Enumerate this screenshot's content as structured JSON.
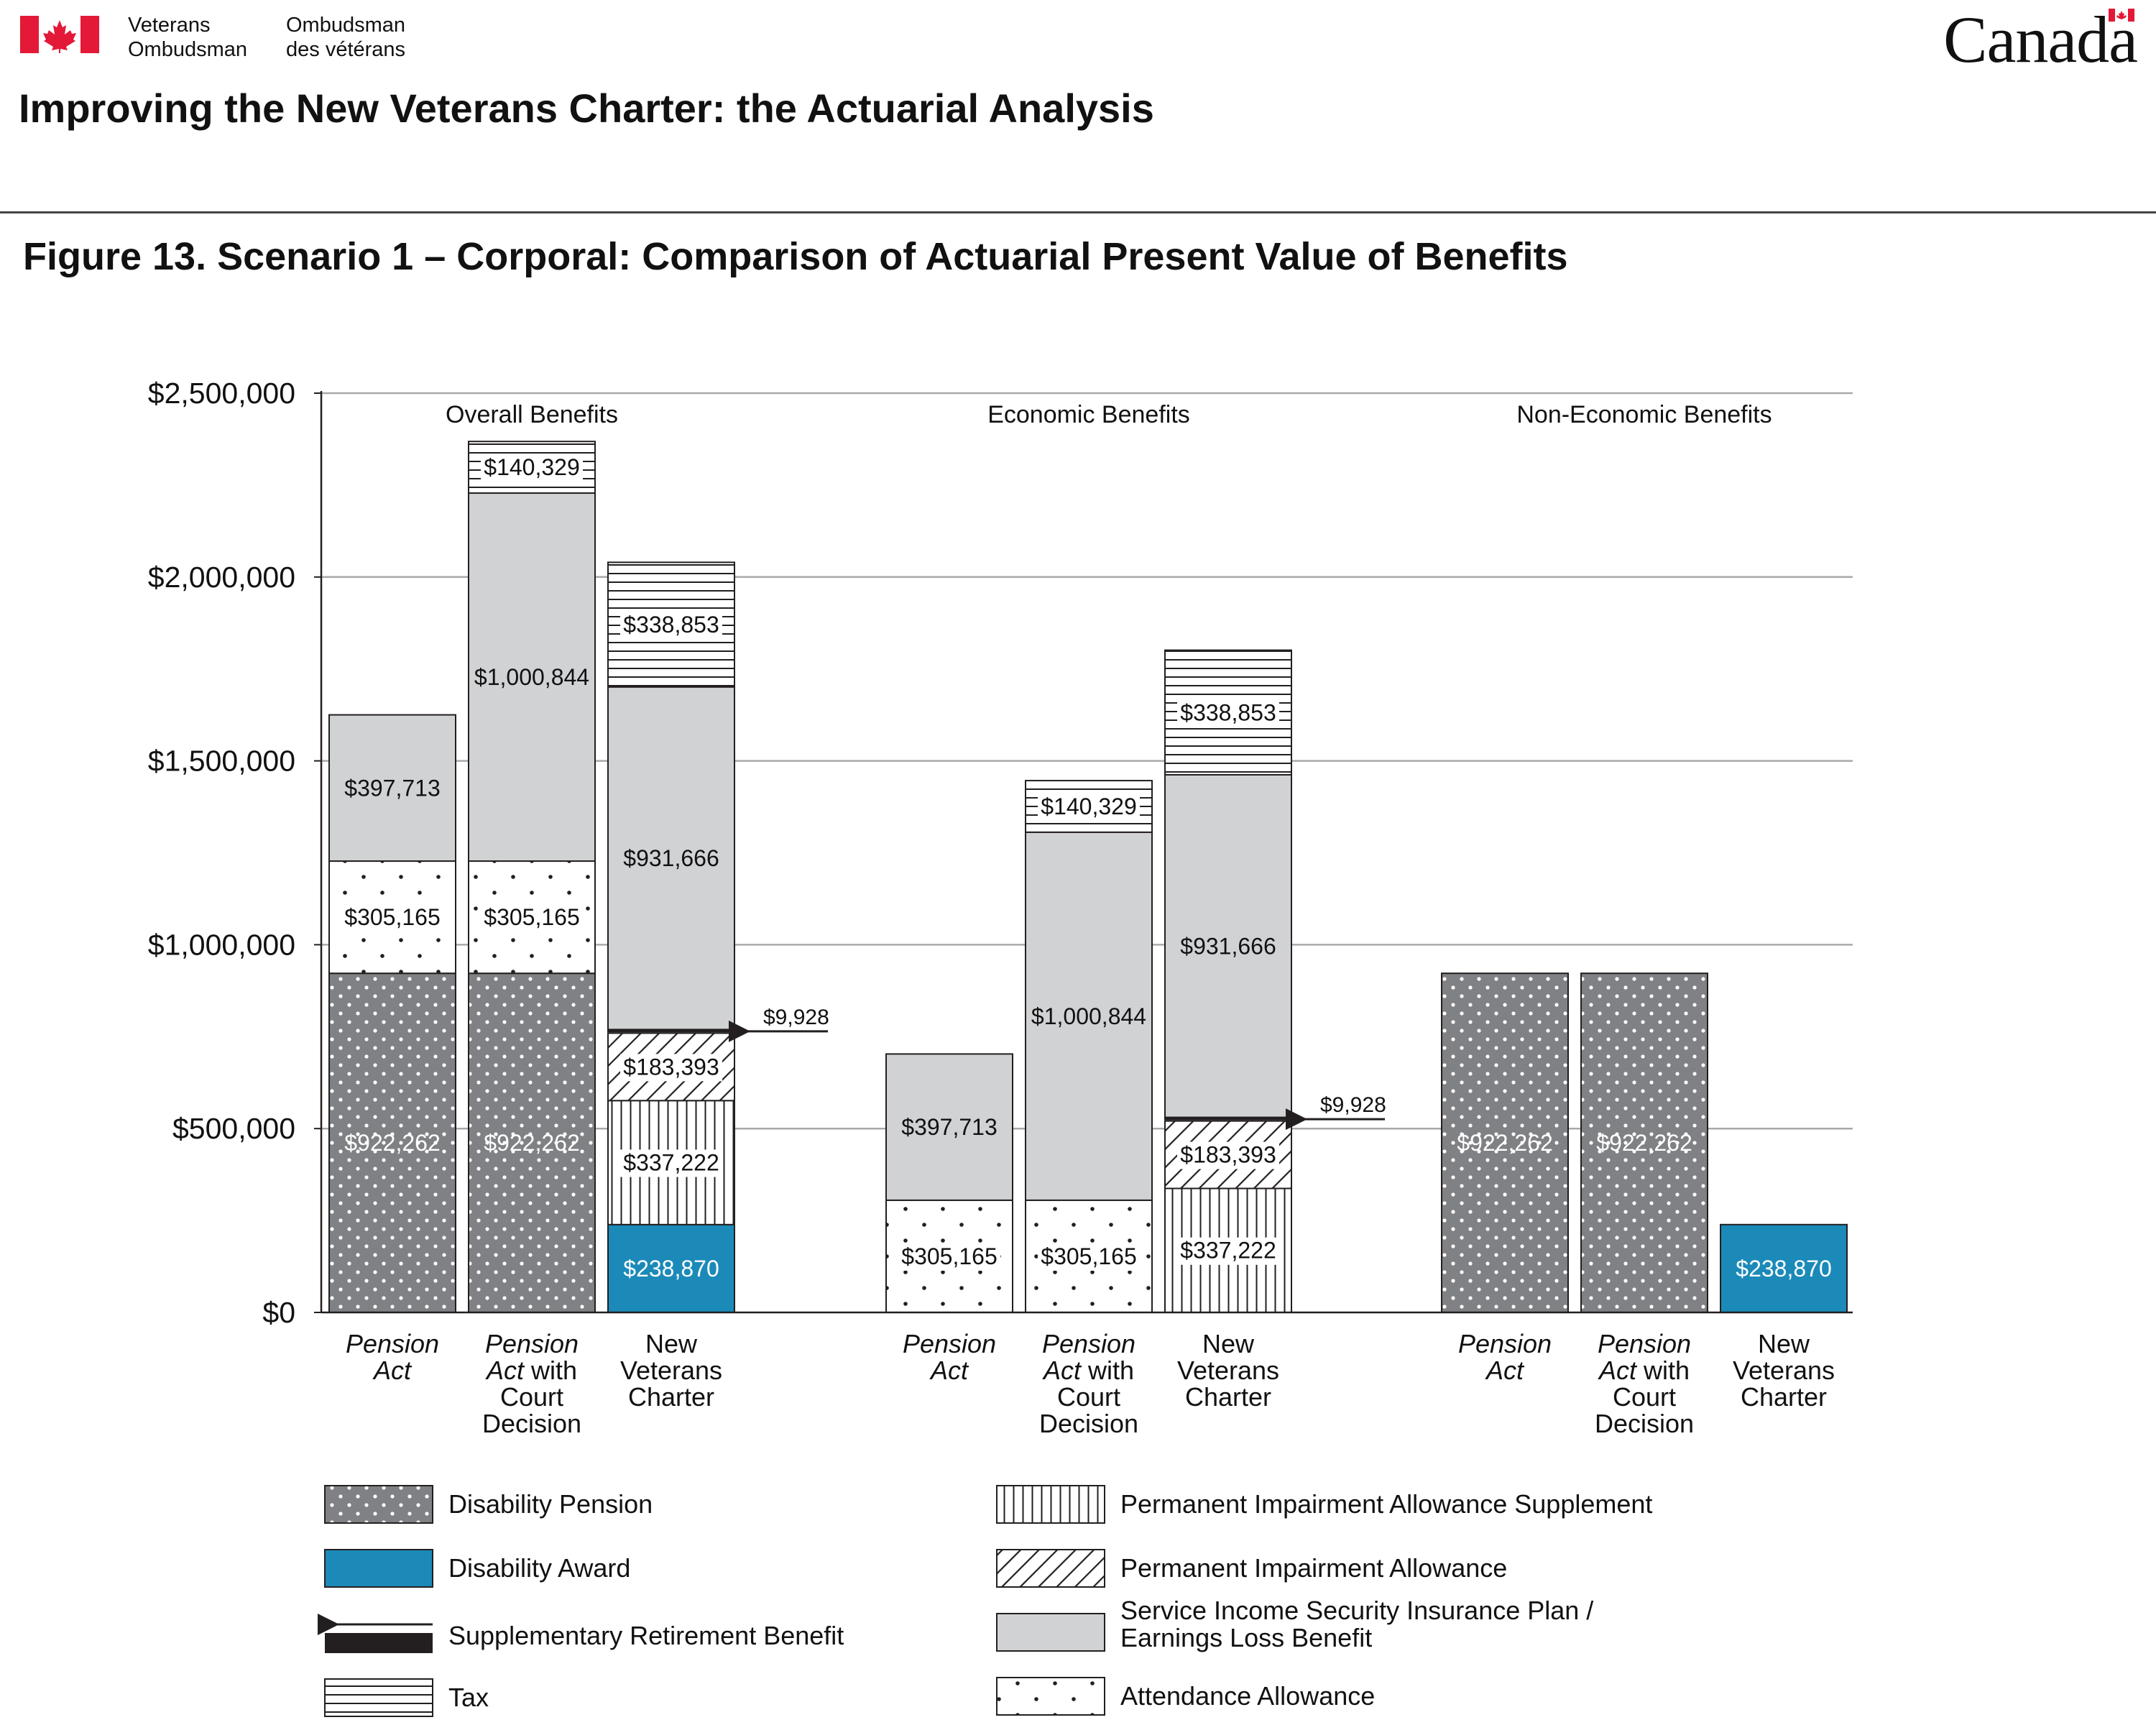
{
  "header": {
    "org_en_line1": "Veterans",
    "org_en_line2": "Ombudsman",
    "org_fr_line1": "Ombudsman",
    "org_fr_line2": "des vétérans",
    "wordmark": "Canada",
    "report_title": "Improving the New Veterans Charter: the Actuarial Analysis"
  },
  "figure_title": "Figure 13. Scenario 1 – Corporal: Comparison of Actuarial Present Value of Benefits",
  "colors": {
    "disability_pension": "#808184",
    "disability_award": "#1b8ab9",
    "sisip_elb": "#d1d2d4",
    "white": "#ffffff",
    "outline": "#231f20",
    "grid": "#a7a9ac"
  },
  "legend": [
    {
      "key": "disability_pension",
      "label": "Disability Pension",
      "icon": "dotted-gray-swatch"
    },
    {
      "key": "disability_award",
      "label": "Disability Award",
      "icon": "blue-swatch"
    },
    {
      "key": "srb",
      "label": "Supplementary Retirement Benefit",
      "icon": "arrow-and-black-bar"
    },
    {
      "key": "tax",
      "label": "Tax",
      "icon": "horizontal-lines-swatch"
    },
    {
      "key": "pias",
      "label": "Permanent Impairment Allowance Supplement",
      "icon": "vertical-lines-swatch"
    },
    {
      "key": "pia",
      "label": "Permanent Impairment Allowance",
      "icon": "diagonal-hatch-swatch"
    },
    {
      "key": "sisip_elb",
      "label_line1": "Service Income Security Insurance Plan /",
      "label_line2": "Earnings Loss Benefit",
      "icon": "light-gray-swatch"
    },
    {
      "key": "attendance",
      "label": "Attendance Allowance",
      "icon": "sparse-dots-swatch"
    }
  ],
  "chart_data": {
    "type": "bar",
    "stacked": true,
    "ylim": [
      0,
      2500000
    ],
    "yticks": [
      "$0",
      "$500,000",
      "$1,000,000",
      "$1,500,000",
      "$2,000,000",
      "$2,500,000"
    ],
    "ytick_values": [
      0,
      500000,
      1000000,
      1500000,
      2000000,
      2500000
    ],
    "grid": true,
    "legend_position": "bottom",
    "groups": [
      {
        "title": "Overall Benefits",
        "bars": [
          {
            "label_lines": [
              [
                "Pension",
                true
              ],
              [
                "Act",
                true
              ]
            ],
            "segments": [
              {
                "key": "disability_pension",
                "value": 922262,
                "label": "$922,262"
              },
              {
                "key": "attendance",
                "value": 305165,
                "label": "$305,165"
              },
              {
                "key": "sisip_elb",
                "value": 397713,
                "label": "$397,713"
              }
            ]
          },
          {
            "label_lines": [
              [
                "Pension",
                true
              ],
              [
                "Act|with",
                "mixed"
              ],
              [
                "Court",
                false
              ],
              [
                "Decision",
                false
              ]
            ],
            "segments": [
              {
                "key": "disability_pension",
                "value": 922262,
                "label": "$922,262"
              },
              {
                "key": "attendance",
                "value": 305165,
                "label": "$305,165"
              },
              {
                "key": "sisip_elb",
                "value": 1000844,
                "label": "$1,000,844"
              },
              {
                "key": "tax",
                "value": 140329,
                "label": "$140,329"
              }
            ]
          },
          {
            "label_lines": [
              [
                "New",
                false
              ],
              [
                "Veterans",
                false
              ],
              [
                "Charter",
                false
              ]
            ],
            "segments": [
              {
                "key": "disability_award",
                "value": 238870,
                "label": "$238,870"
              },
              {
                "key": "pias",
                "value": 337222,
                "label": "$337,222"
              },
              {
                "key": "pia",
                "value": 183393,
                "label": "$183,393"
              },
              {
                "key": "srb",
                "value": 9928,
                "label": "$9,928",
                "callout": true
              },
              {
                "key": "sisip_elb",
                "value": 931666,
                "label": "$931,666"
              },
              {
                "key": "tax",
                "value": 338853,
                "label": "$338,853"
              }
            ]
          }
        ]
      },
      {
        "title": "Economic Benefits",
        "bars": [
          {
            "label_lines": [
              [
                "Pension",
                true
              ],
              [
                "Act",
                true
              ]
            ],
            "segments": [
              {
                "key": "attendance",
                "value": 305165,
                "label": "$305,165"
              },
              {
                "key": "sisip_elb",
                "value": 397713,
                "label": "$397,713"
              }
            ]
          },
          {
            "label_lines": [
              [
                "Pension",
                true
              ],
              [
                "Act|with",
                "mixed"
              ],
              [
                "Court",
                false
              ],
              [
                "Decision",
                false
              ]
            ],
            "segments": [
              {
                "key": "attendance",
                "value": 305165,
                "label": "$305,165"
              },
              {
                "key": "sisip_elb",
                "value": 1000844,
                "label": "$1,000,844"
              },
              {
                "key": "tax",
                "value": 140329,
                "label": "$140,329"
              }
            ]
          },
          {
            "label_lines": [
              [
                "New",
                false
              ],
              [
                "Veterans",
                false
              ],
              [
                "Charter",
                false
              ]
            ],
            "segments": [
              {
                "key": "pias",
                "value": 337222,
                "label": "$337,222"
              },
              {
                "key": "pia",
                "value": 183393,
                "label": "$183,393"
              },
              {
                "key": "srb",
                "value": 9928,
                "label": "$9,928",
                "callout": true
              },
              {
                "key": "sisip_elb",
                "value": 931666,
                "label": "$931,666"
              },
              {
                "key": "tax",
                "value": 338853,
                "label": "$338,853"
              }
            ]
          }
        ]
      },
      {
        "title": "Non-Economic Benefits",
        "bars": [
          {
            "label_lines": [
              [
                "Pension",
                true
              ],
              [
                "Act",
                true
              ]
            ],
            "segments": [
              {
                "key": "disability_pension",
                "value": 922262,
                "label": "$922,262"
              }
            ]
          },
          {
            "label_lines": [
              [
                "Pension",
                true
              ],
              [
                "Act|with",
                "mixed"
              ],
              [
                "Court",
                false
              ],
              [
                "Decision",
                false
              ]
            ],
            "segments": [
              {
                "key": "disability_pension",
                "value": 922262,
                "label": "$922,262"
              }
            ]
          },
          {
            "label_lines": [
              [
                "New",
                false
              ],
              [
                "Veterans",
                false
              ],
              [
                "Charter",
                false
              ]
            ],
            "segments": [
              {
                "key": "disability_award",
                "value": 238870,
                "label": "$238,870"
              }
            ]
          }
        ]
      }
    ]
  }
}
